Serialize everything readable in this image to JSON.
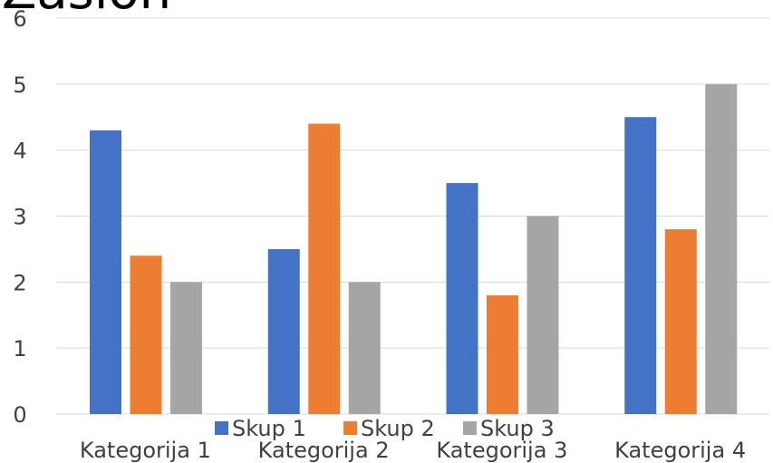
{
  "chart_data": {
    "type": "bar",
    "title": "Zaslon",
    "categories": [
      "Kategorija 1",
      "Kategorija 2",
      "Kategorija 3",
      "Kategorija 4"
    ],
    "series": [
      {
        "name": "Skup 1",
        "values": [
          4.3,
          2.5,
          3.5,
          4.5
        ],
        "color": "#4472C4"
      },
      {
        "name": "Skup 2",
        "values": [
          2.4,
          4.4,
          1.8,
          2.8
        ],
        "color": "#ED7D31"
      },
      {
        "name": "Skup 3",
        "values": [
          2,
          2,
          3,
          5
        ],
        "color": "#A5A5A5"
      }
    ],
    "ylim": [
      0,
      6
    ],
    "yticks": [
      "0",
      "1",
      "2",
      "3",
      "4",
      "5",
      "6"
    ],
    "grid": true,
    "legend_position": "bottom",
    "gridline_color": "#D9D9D9"
  }
}
